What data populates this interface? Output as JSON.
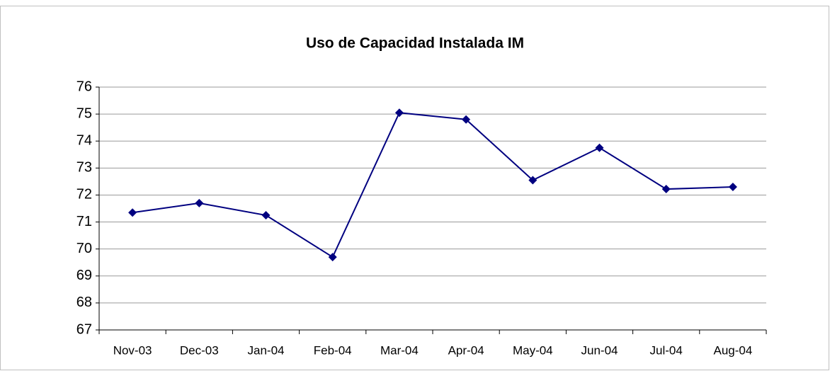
{
  "chart_data": {
    "type": "line",
    "title": "Uso de Capacidad Instalada IM",
    "categories": [
      "Nov-03",
      "Dec-03",
      "Jan-04",
      "Feb-04",
      "Mar-04",
      "Apr-04",
      "May-04",
      "Jun-04",
      "Jul-04",
      "Aug-04"
    ],
    "series": [
      {
        "name": "Uso de Capacidad Instalada IM",
        "color": "#000080",
        "values": [
          71.35,
          71.7,
          71.25,
          69.7,
          75.05,
          74.8,
          72.55,
          73.75,
          72.22,
          72.3
        ]
      }
    ],
    "ylim": [
      67,
      76
    ],
    "yticks": [
      67,
      68,
      69,
      70,
      71,
      72,
      73,
      74,
      75,
      76
    ],
    "grid": true
  }
}
